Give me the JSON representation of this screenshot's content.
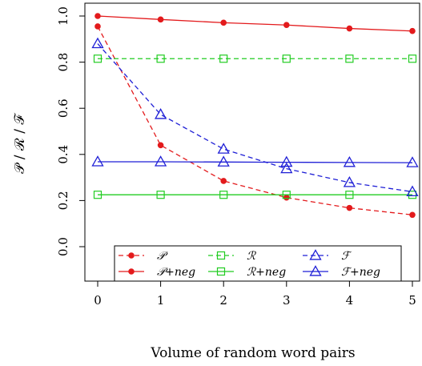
{
  "chart_data": {
    "type": "line",
    "xlabel": "Volume of random word pairs",
    "ylabel": "𝒫 / ℛ / ℱ",
    "xlim": [
      0,
      5
    ],
    "ylim": [
      0.0,
      1.0
    ],
    "x": [
      0,
      1,
      2,
      3,
      4,
      5
    ],
    "x_ticks": [
      "0",
      "1",
      "2",
      "3",
      "4",
      "5"
    ],
    "y_ticks": [
      "0.0",
      "0.2",
      "0.4",
      "0.6",
      "0.8",
      "1.0"
    ],
    "grid": false,
    "legend_position": "bottom",
    "series": [
      {
        "name": "𝒫",
        "color": "#e31a1c",
        "dash": true,
        "marker": "dot",
        "values": [
          0.955,
          0.44,
          0.285,
          0.213,
          0.168,
          0.138
        ]
      },
      {
        "name": "𝒫+neg",
        "color": "#e31a1c",
        "dash": false,
        "marker": "dot",
        "values": [
          1.0,
          0.985,
          0.971,
          0.961,
          0.946,
          0.935
        ]
      },
      {
        "name": "ℛ",
        "color": "#22cc22",
        "dash": true,
        "marker": "square",
        "values": [
          0.815,
          0.815,
          0.815,
          0.815,
          0.815,
          0.815
        ]
      },
      {
        "name": "ℛ+neg",
        "color": "#22cc22",
        "dash": false,
        "marker": "square",
        "values": [
          0.225,
          0.225,
          0.225,
          0.225,
          0.225,
          0.225
        ]
      },
      {
        "name": "ℱ",
        "color": "#1f1fd6",
        "dash": true,
        "marker": "triangle",
        "values": [
          0.88,
          0.573,
          0.423,
          0.338,
          0.278,
          0.238
        ]
      },
      {
        "name": "ℱ+neg",
        "color": "#1f1fd6",
        "dash": false,
        "marker": "triangle",
        "values": [
          0.368,
          0.368,
          0.367,
          0.366,
          0.365,
          0.364
        ]
      }
    ]
  }
}
